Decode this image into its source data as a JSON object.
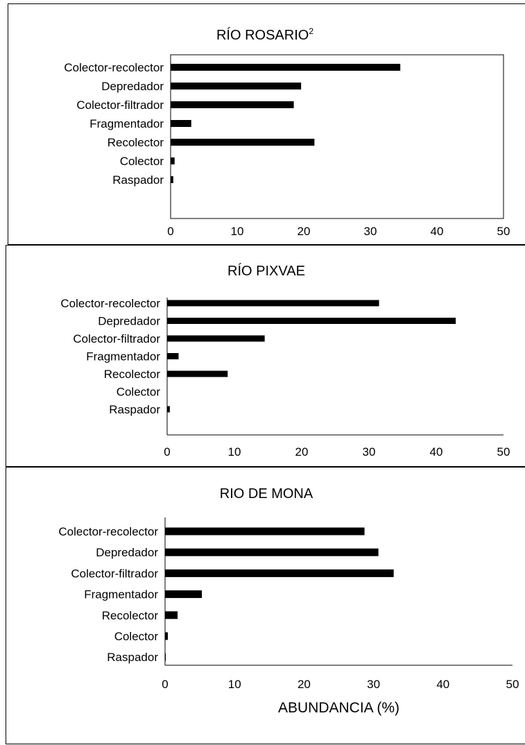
{
  "chart_data": [
    {
      "type": "bar",
      "orientation": "horizontal",
      "title": "RÍO ROSARIO",
      "title_superscript": "2",
      "categories": [
        "Colector-recolector",
        "Depredador",
        "Colector-filtrador",
        "Fragmentador",
        "Recolector",
        "Colector",
        "Raspador"
      ],
      "values": [
        34.5,
        19.6,
        18.5,
        3.1,
        21.6,
        0.6,
        0.4
      ],
      "xlim": [
        0,
        50
      ],
      "xticks": [
        "0",
        "10",
        "20",
        "30",
        "40",
        "50"
      ],
      "xlabel": "",
      "plot_frame": "box"
    },
    {
      "type": "bar",
      "orientation": "horizontal",
      "title": "RÍO PIXVAE",
      "categories": [
        "Colector-recolector",
        "Depredador",
        "Colector-filtrador",
        "Fragmentador",
        "Recolector",
        "Colector",
        "Raspador"
      ],
      "values": [
        31.5,
        42.9,
        14.5,
        1.7,
        9.0,
        0,
        0.4
      ],
      "xlim": [
        0,
        50
      ],
      "xticks": [
        "0",
        "10",
        "20",
        "30",
        "40",
        "50"
      ],
      "xlabel": "",
      "plot_frame": "axes"
    },
    {
      "type": "bar",
      "orientation": "horizontal",
      "title": "RIO DE MONA",
      "categories": [
        "Colector-recolector",
        "Depredador",
        "Colector-filtrador",
        "Fragmentador",
        "Recolector",
        "Colector",
        "Raspador"
      ],
      "values": [
        28.7,
        30.7,
        32.9,
        5.3,
        1.8,
        0.4,
        0.1
      ],
      "xlim": [
        0,
        50
      ],
      "xticks": [
        "0",
        "10",
        "20",
        "30",
        "40",
        "50"
      ],
      "xlabel": "ABUNDANCIA (%)",
      "plot_frame": "axes"
    }
  ],
  "colors": {
    "bar": "#000000",
    "axis": "#000000",
    "background": "#ffffff"
  }
}
